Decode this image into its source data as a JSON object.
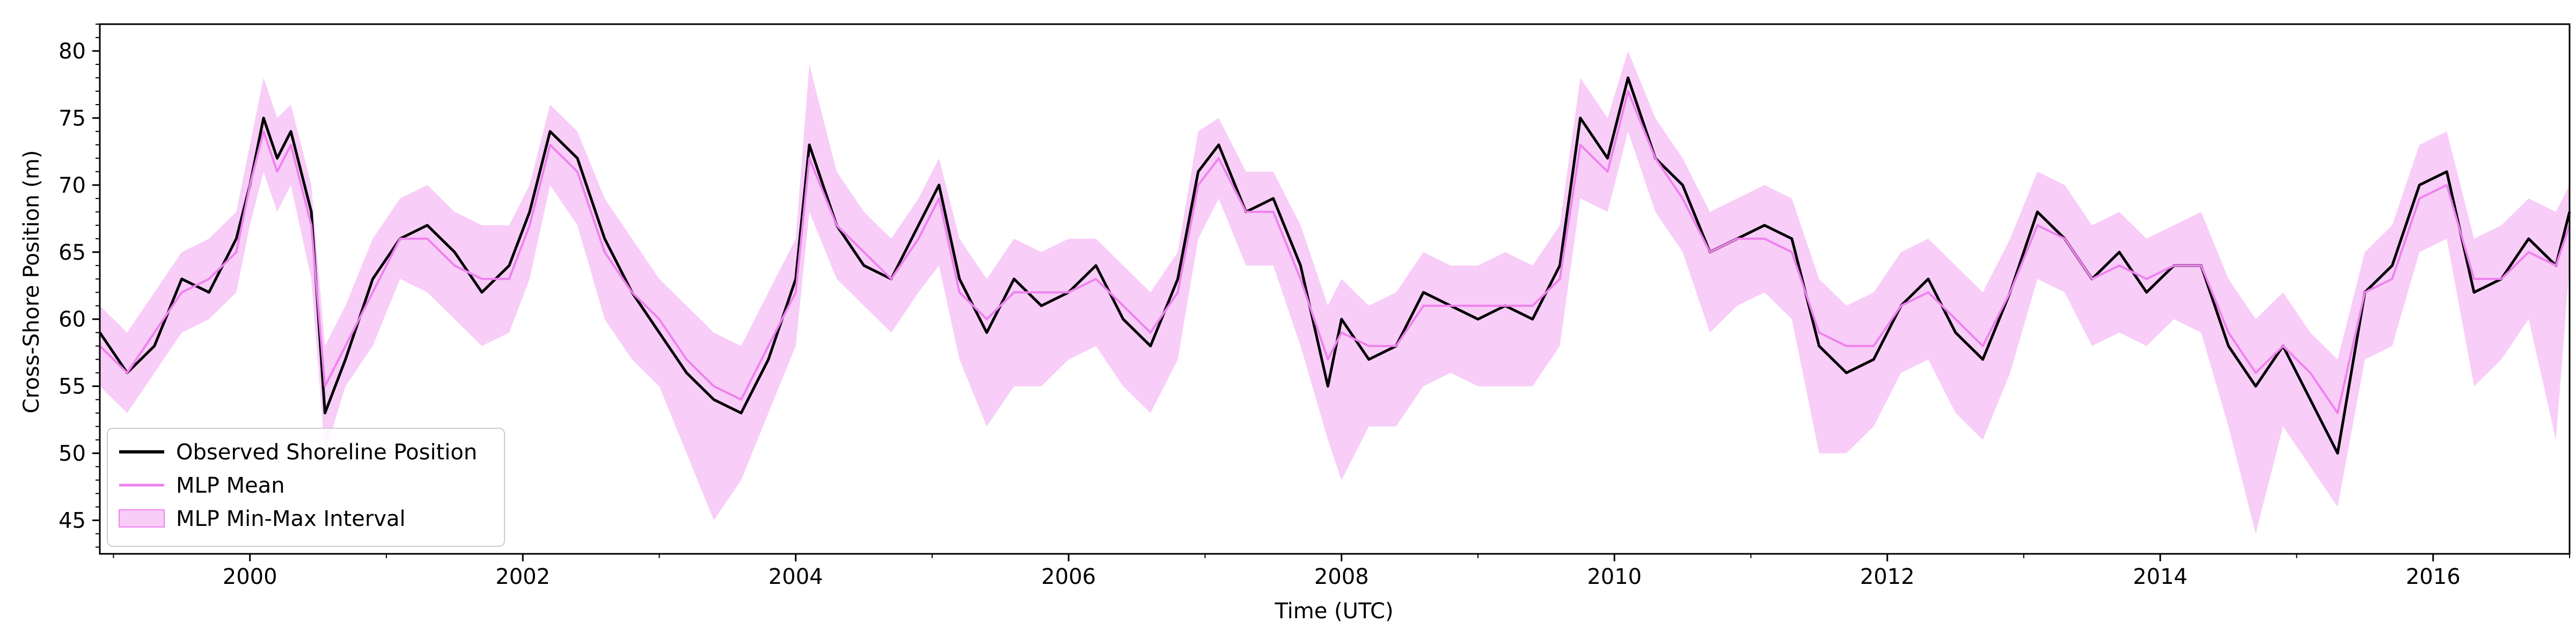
{
  "chart_data": {
    "type": "line",
    "title": "",
    "xlabel": "Time (UTC)",
    "ylabel": "Cross-Shore Position (m)",
    "xlim": [
      1998.9,
      2017.0
    ],
    "ylim": [
      42.5,
      82.0
    ],
    "x_ticks": [
      2000,
      2002,
      2004,
      2006,
      2008,
      2010,
      2012,
      2014,
      2016
    ],
    "x_tick_labels": [
      "2000",
      "2002",
      "2004",
      "2006",
      "2008",
      "2010",
      "2012",
      "2014",
      "2016"
    ],
    "y_ticks": [
      45,
      50,
      55,
      60,
      65,
      70,
      75,
      80
    ],
    "y_tick_labels": [
      "45",
      "50",
      "55",
      "60",
      "65",
      "70",
      "75",
      "80"
    ],
    "legend_position": "lower-left",
    "series": [
      {
        "name": "Observed Shoreline Position",
        "color": "#000000",
        "kind": "line",
        "x": [
          1998.9,
          1999.1,
          1999.3,
          1999.5,
          1999.7,
          1999.9,
          2000.0,
          2000.1,
          2000.2,
          2000.3,
          2000.45,
          2000.55,
          2000.7,
          2000.9,
          2001.1,
          2001.3,
          2001.5,
          2001.7,
          2001.9,
          2002.05,
          2002.2,
          2002.4,
          2002.6,
          2002.8,
          2003.0,
          2003.2,
          2003.4,
          2003.6,
          2003.8,
          2004.0,
          2004.1,
          2004.3,
          2004.5,
          2004.7,
          2004.9,
          2005.05,
          2005.2,
          2005.4,
          2005.6,
          2005.8,
          2006.0,
          2006.2,
          2006.4,
          2006.6,
          2006.8,
          2006.95,
          2007.1,
          2007.3,
          2007.5,
          2007.7,
          2007.9,
          2008.0,
          2008.2,
          2008.4,
          2008.6,
          2008.8,
          2009.0,
          2009.2,
          2009.4,
          2009.6,
          2009.75,
          2009.95,
          2010.1,
          2010.3,
          2010.5,
          2010.7,
          2010.9,
          2011.1,
          2011.3,
          2011.5,
          2011.7,
          2011.9,
          2012.1,
          2012.3,
          2012.5,
          2012.7,
          2012.9,
          2013.1,
          2013.3,
          2013.5,
          2013.7,
          2013.9,
          2014.1,
          2014.3,
          2014.5,
          2014.7,
          2014.9,
          2015.1,
          2015.3,
          2015.5,
          2015.7,
          2015.9,
          2016.1,
          2016.3,
          2016.5,
          2016.7,
          2016.9,
          2017.0
        ],
        "y": [
          59,
          56,
          58,
          63,
          62,
          66,
          70,
          75,
          72,
          74,
          68,
          53,
          57,
          63,
          66,
          67,
          65,
          62,
          64,
          68,
          74,
          72,
          66,
          62,
          59,
          56,
          54,
          53,
          57,
          63,
          73,
          67,
          64,
          63,
          67,
          70,
          63,
          59,
          63,
          61,
          62,
          64,
          60,
          58,
          63,
          71,
          73,
          68,
          69,
          64,
          55,
          60,
          57,
          58,
          62,
          61,
          60,
          61,
          60,
          64,
          75,
          72,
          78,
          72,
          70,
          65,
          66,
          67,
          66,
          58,
          56,
          57,
          61,
          63,
          59,
          57,
          62,
          68,
          66,
          63,
          65,
          62,
          64,
          64,
          58,
          55,
          58,
          54,
          50,
          62,
          64,
          70,
          71,
          62,
          63,
          66,
          64,
          68
        ]
      },
      {
        "name": "MLP Mean",
        "color": "#ee82ee",
        "kind": "line",
        "x": [
          1998.9,
          1999.1,
          1999.3,
          1999.5,
          1999.7,
          1999.9,
          2000.0,
          2000.1,
          2000.2,
          2000.3,
          2000.45,
          2000.55,
          2000.7,
          2000.9,
          2001.1,
          2001.3,
          2001.5,
          2001.7,
          2001.9,
          2002.05,
          2002.2,
          2002.4,
          2002.6,
          2002.8,
          2003.0,
          2003.2,
          2003.4,
          2003.6,
          2003.8,
          2004.0,
          2004.1,
          2004.3,
          2004.5,
          2004.7,
          2004.9,
          2005.05,
          2005.2,
          2005.4,
          2005.6,
          2005.8,
          2006.0,
          2006.2,
          2006.4,
          2006.6,
          2006.8,
          2006.95,
          2007.1,
          2007.3,
          2007.5,
          2007.7,
          2007.9,
          2008.0,
          2008.2,
          2008.4,
          2008.6,
          2008.8,
          2009.0,
          2009.2,
          2009.4,
          2009.6,
          2009.75,
          2009.95,
          2010.1,
          2010.3,
          2010.5,
          2010.7,
          2010.9,
          2011.1,
          2011.3,
          2011.5,
          2011.7,
          2011.9,
          2012.1,
          2012.3,
          2012.5,
          2012.7,
          2012.9,
          2013.1,
          2013.3,
          2013.5,
          2013.7,
          2013.9,
          2014.1,
          2014.3,
          2014.5,
          2014.7,
          2014.9,
          2015.1,
          2015.3,
          2015.5,
          2015.7,
          2015.9,
          2016.1,
          2016.3,
          2016.5,
          2016.7,
          2016.9,
          2017.0
        ],
        "y": [
          58,
          56,
          59,
          62,
          63,
          65,
          70,
          74,
          71,
          73,
          67,
          55,
          58,
          62,
          66,
          66,
          64,
          63,
          63,
          67,
          73,
          71,
          65,
          62,
          60,
          57,
          55,
          54,
          58,
          62,
          72,
          67,
          65,
          63,
          66,
          69,
          62,
          60,
          62,
          62,
          62,
          63,
          61,
          59,
          62,
          70,
          72,
          68,
          68,
          63,
          57,
          59,
          58,
          58,
          61,
          61,
          61,
          61,
          61,
          63,
          73,
          71,
          77,
          72,
          69,
          65,
          66,
          66,
          65,
          59,
          58,
          58,
          61,
          62,
          60,
          58,
          62,
          67,
          66,
          63,
          64,
          63,
          64,
          64,
          59,
          56,
          58,
          56,
          53,
          62,
          63,
          69,
          70,
          63,
          63,
          65,
          64,
          67
        ]
      },
      {
        "name": "MLP Min-Max Interval",
        "color": "#ee82ee",
        "kind": "band",
        "x": [
          1998.9,
          1999.1,
          1999.3,
          1999.5,
          1999.7,
          1999.9,
          2000.0,
          2000.1,
          2000.2,
          2000.3,
          2000.45,
          2000.55,
          2000.7,
          2000.9,
          2001.1,
          2001.3,
          2001.5,
          2001.7,
          2001.9,
          2002.05,
          2002.2,
          2002.4,
          2002.6,
          2002.8,
          2003.0,
          2003.2,
          2003.4,
          2003.6,
          2003.8,
          2004.0,
          2004.1,
          2004.3,
          2004.5,
          2004.7,
          2004.9,
          2005.05,
          2005.2,
          2005.4,
          2005.6,
          2005.8,
          2006.0,
          2006.2,
          2006.4,
          2006.6,
          2006.8,
          2006.95,
          2007.1,
          2007.3,
          2007.5,
          2007.7,
          2007.9,
          2008.0,
          2008.2,
          2008.4,
          2008.6,
          2008.8,
          2009.0,
          2009.2,
          2009.4,
          2009.6,
          2009.75,
          2009.95,
          2010.1,
          2010.3,
          2010.5,
          2010.7,
          2010.9,
          2011.1,
          2011.3,
          2011.5,
          2011.7,
          2011.9,
          2012.1,
          2012.3,
          2012.5,
          2012.7,
          2012.9,
          2013.1,
          2013.3,
          2013.5,
          2013.7,
          2013.9,
          2014.1,
          2014.3,
          2014.5,
          2014.7,
          2014.9,
          2015.1,
          2015.3,
          2015.5,
          2015.7,
          2015.9,
          2016.1,
          2016.3,
          2016.5,
          2016.7,
          2016.9,
          2017.0
        ],
        "lower": [
          55,
          53,
          56,
          59,
          60,
          62,
          67,
          71,
          68,
          70,
          63,
          50,
          55,
          58,
          63,
          62,
          60,
          58,
          59,
          63,
          70,
          67,
          60,
          57,
          55,
          50,
          45,
          48,
          53,
          58,
          68,
          63,
          61,
          59,
          62,
          64,
          57,
          52,
          55,
          55,
          57,
          58,
          55,
          53,
          57,
          66,
          69,
          64,
          64,
          58,
          51,
          48,
          52,
          52,
          55,
          56,
          55,
          55,
          55,
          58,
          69,
          68,
          74,
          68,
          65,
          59,
          61,
          62,
          60,
          50,
          50,
          52,
          56,
          57,
          53,
          51,
          56,
          63,
          62,
          58,
          59,
          58,
          60,
          59,
          52,
          44,
          52,
          49,
          46,
          57,
          58,
          65,
          66,
          55,
          57,
          60,
          51,
          64
        ],
        "upper": [
          61,
          59,
          62,
          65,
          66,
          68,
          73,
          78,
          75,
          76,
          70,
          58,
          61,
          66,
          69,
          70,
          68,
          67,
          67,
          70,
          76,
          74,
          69,
          66,
          63,
          61,
          59,
          58,
          62,
          66,
          79,
          71,
          68,
          66,
          69,
          72,
          66,
          63,
          66,
          65,
          66,
          66,
          64,
          62,
          65,
          74,
          75,
          71,
          71,
          67,
          61,
          63,
          61,
          62,
          65,
          64,
          64,
          65,
          64,
          67,
          78,
          75,
          80,
          75,
          72,
          68,
          69,
          70,
          69,
          63,
          61,
          62,
          65,
          66,
          64,
          62,
          66,
          71,
          70,
          67,
          68,
          66,
          67,
          68,
          63,
          60,
          62,
          59,
          57,
          65,
          67,
          73,
          74,
          66,
          67,
          69,
          68,
          70
        ]
      }
    ]
  }
}
